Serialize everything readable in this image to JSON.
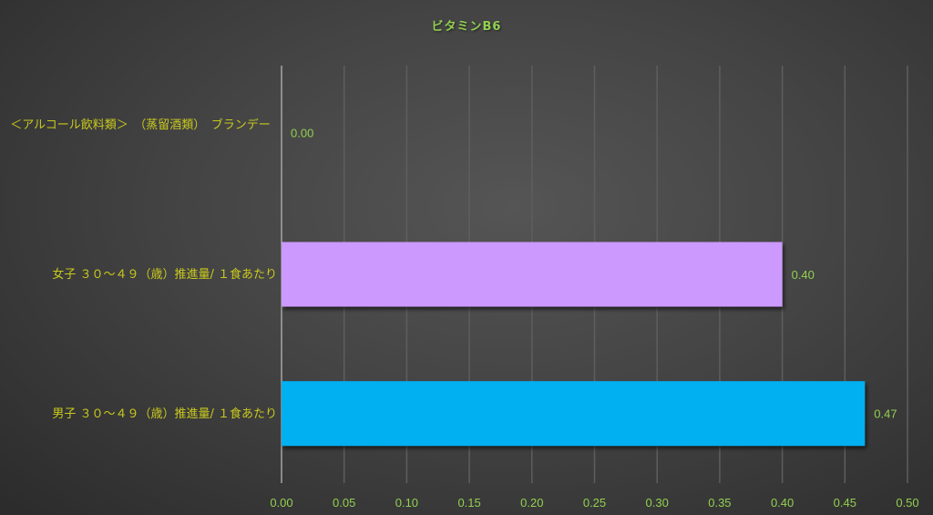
{
  "chart_data": {
    "type": "bar",
    "orientation": "horizontal",
    "title": "ビタミンB6",
    "categories": [
      "＜アルコール飲料類＞　（蒸留酒類）　ブランデー",
      "女子 ３０～４９（歳）推進量/ １食あたり",
      "男子 ３０～４９（歳）推進量/ １食あたり"
    ],
    "values": [
      0.0,
      0.4,
      0.466
    ],
    "data_labels": [
      "0.00",
      "0.40",
      "0.47"
    ],
    "bar_colors": [
      "#cc99ff",
      "#cc99ff",
      "#00b0f0"
    ],
    "xlim": [
      0,
      0.5
    ],
    "x_ticks": [
      "0.00",
      "0.05",
      "0.10",
      "0.15",
      "0.20",
      "0.25",
      "0.30",
      "0.35",
      "0.40",
      "0.45",
      "0.50"
    ],
    "grid": "vertical",
    "title_color": "#92d050",
    "label_color": "#c9c91e",
    "value_color": "#92d050"
  }
}
